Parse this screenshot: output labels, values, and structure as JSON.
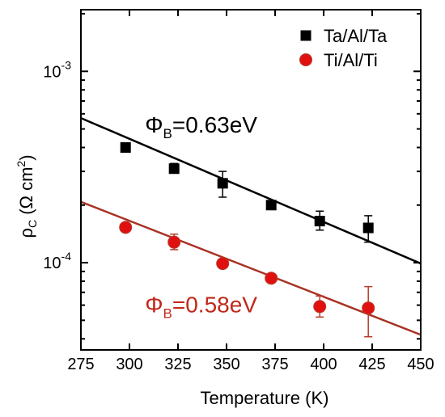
{
  "chart_data": {
    "type": "scatter",
    "xlabel": "Temperature (K)",
    "ylabel_main": "ρ",
    "ylabel_sub": "C",
    "ylabel_rest": " (Ω cm",
    "ylabel_sup": "2",
    "ylabel_close": ")",
    "y_scale": "log",
    "xlim": [
      275,
      450
    ],
    "ylim": [
      3.5e-05,
      0.0021
    ],
    "x_ticks": [
      275,
      300,
      325,
      350,
      375,
      400,
      425,
      450
    ],
    "x_tick_labels": [
      "275",
      "300",
      "325",
      "350",
      "375",
      "400",
      "425",
      "450"
    ],
    "y_ticks": [
      {
        "value": 0.001,
        "base": "10",
        "exp": "-3"
      },
      {
        "value": 0.0001,
        "base": "10",
        "exp": "-4"
      }
    ],
    "grid": false,
    "legend_position": "top-right",
    "series": [
      {
        "name": "Ta/Al/Ta",
        "marker": "square",
        "color": "#000000",
        "error_color": "#000000",
        "x": [
          298,
          323,
          348,
          373,
          398,
          423
        ],
        "y": [
          0.0004,
          0.00031,
          0.00026,
          0.0002,
          0.000165,
          0.000152
        ],
        "err_low": [
          0.00039,
          0.0003,
          0.00022,
          0.00019,
          0.000148,
          0.000128
        ],
        "err_high": [
          0.00041,
          0.00033,
          0.0003,
          0.00021,
          0.000186,
          0.000176
        ],
        "fit_line": {
          "x": [
            275,
            450
          ],
          "y": [
            0.00057,
            9.9e-05
          ],
          "color": "#000000"
        }
      },
      {
        "name": "Ti/Al/Ti",
        "marker": "circle",
        "color": "#e01010",
        "error_color": "#b83a2a",
        "x": [
          298,
          323,
          348,
          373,
          398,
          423
        ],
        "y": [
          0.000153,
          0.000128,
          9.9e-05,
          8.3e-05,
          5.9e-05,
          5.8e-05
        ],
        "err_low": [
          0.000153,
          0.000117,
          9.5e-05,
          8.3e-05,
          5.2e-05,
          4.1e-05
        ],
        "err_high": [
          0.000153,
          0.000141,
          0.000104,
          8.3e-05,
          6.7e-05,
          7.5e-05
        ],
        "fit_line": {
          "x": [
            275,
            450
          ],
          "y": [
            0.000208,
            4.2e-05
          ],
          "color": "#a83224"
        }
      }
    ],
    "annotations": [
      {
        "symbol": "Φ",
        "sub": "B",
        "text": "=0.63eV",
        "color": "#000000",
        "x": 308,
        "y": 0.00048
      },
      {
        "symbol": "Φ",
        "sub": "B",
        "text": "=0.58eV",
        "color": "#c0281a",
        "x": 308,
        "y": 5.5e-05
      }
    ]
  }
}
